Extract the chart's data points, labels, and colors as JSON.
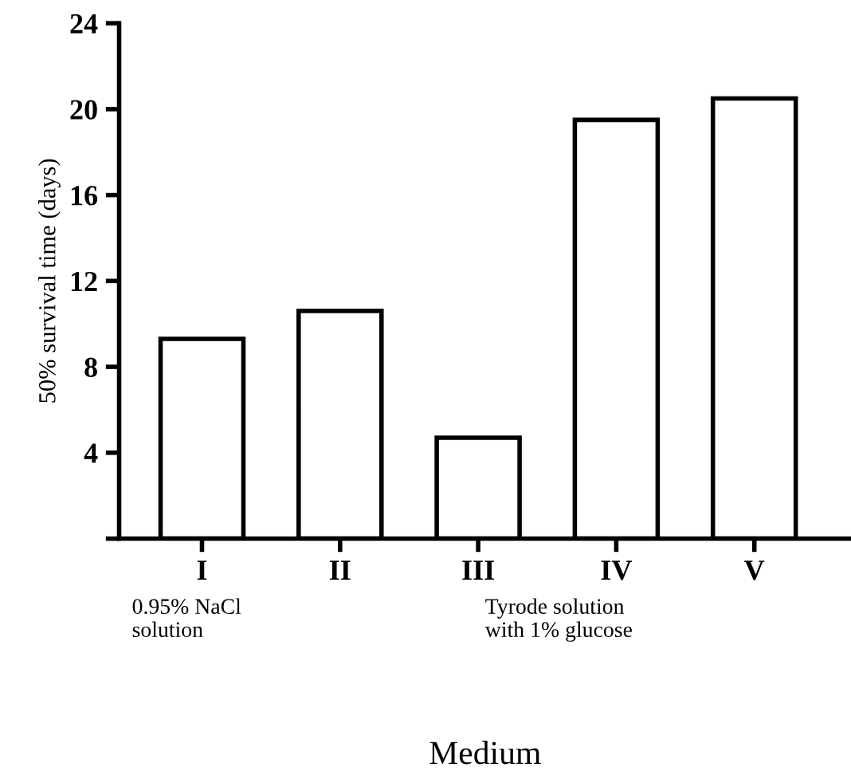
{
  "chart_data": {
    "type": "bar",
    "xlabel": "Medium",
    "ylabel": "50% survival time (days)",
    "categories": [
      "I",
      "II",
      "III",
      "IV",
      "V"
    ],
    "values": [
      9.3,
      10.6,
      4.7,
      19.5,
      20.5
    ],
    "color": "#ffffff",
    "ylim": [
      0,
      24
    ],
    "yticks": [
      {
        "value": 0,
        "label": null
      },
      4,
      8,
      12,
      16,
      20,
      24
    ],
    "grid": false,
    "annotations": [
      "0.95% NaCl\nsolution",
      "Tyrode solution\nwith 1% glucose"
    ]
  }
}
